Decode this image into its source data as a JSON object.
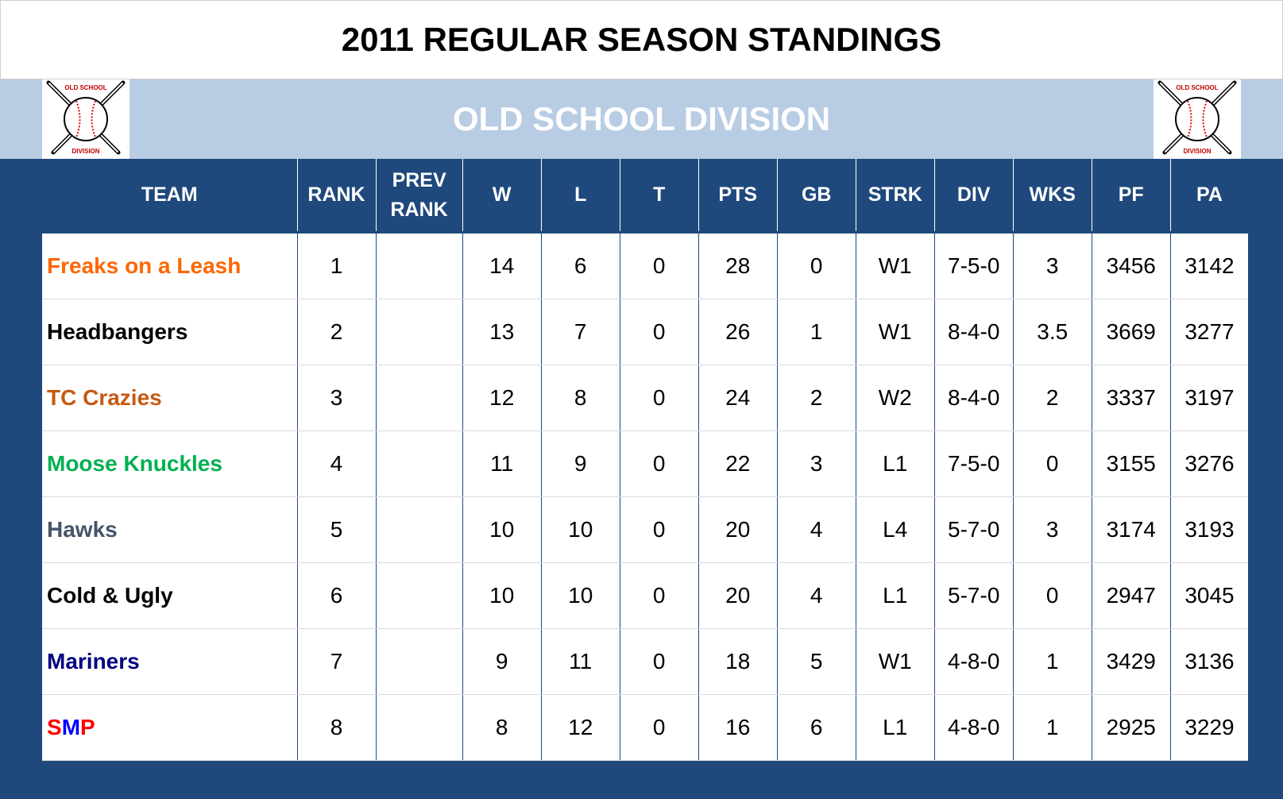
{
  "title": "2011 REGULAR SEASON STANDINGS",
  "division": "OLD SCHOOL DIVISION",
  "logo": {
    "icon": "baseball-crossed-bats-icon",
    "top_text": "OLD SCHOOL",
    "bottom_text": "DIVISION"
  },
  "columns": [
    "TEAM",
    "RANK",
    "PREV RANK",
    "W",
    "L",
    "T",
    "PTS",
    "GB",
    "STRK",
    "DIV",
    "WKS",
    "PF",
    "PA"
  ],
  "column_widths": null,
  "rows": [
    {
      "team": "Freaks on a Leash",
      "color": "#ff6600",
      "rank": "1",
      "prev_rank": "",
      "w": "14",
      "l": "6",
      "t": "0",
      "pts": "28",
      "gb": "0",
      "strk": "W1",
      "div": "7-5-0",
      "wks": "3",
      "pf": "3456",
      "pa": "3142"
    },
    {
      "team": "Headbangers",
      "color": "#000000",
      "rank": "2",
      "prev_rank": "",
      "w": "13",
      "l": "7",
      "t": "0",
      "pts": "26",
      "gb": "1",
      "strk": "W1",
      "div": "8-4-0",
      "wks": "3.5",
      "pf": "3669",
      "pa": "3277"
    },
    {
      "team": "TC Crazies",
      "color": "#c65911",
      "rank": "3",
      "prev_rank": "",
      "w": "12",
      "l": "8",
      "t": "0",
      "pts": "24",
      "gb": "2",
      "strk": "W2",
      "div": "8-4-0",
      "wks": "2",
      "pf": "3337",
      "pa": "3197"
    },
    {
      "team": "Moose Knuckles",
      "color": "#00b050",
      "rank": "4",
      "prev_rank": "",
      "w": "11",
      "l": "9",
      "t": "0",
      "pts": "22",
      "gb": "3",
      "strk": "L1",
      "div": "7-5-0",
      "wks": "0",
      "pf": "3155",
      "pa": "3276"
    },
    {
      "team": "Hawks",
      "color": "#44546a",
      "rank": "5",
      "prev_rank": "",
      "w": "10",
      "l": "10",
      "t": "0",
      "pts": "20",
      "gb": "4",
      "strk": "L4",
      "div": "5-7-0",
      "wks": "3",
      "pf": "3174",
      "pa": "3193"
    },
    {
      "team": "Cold & Ugly",
      "color": "#000000",
      "rank": "6",
      "prev_rank": "",
      "w": "10",
      "l": "10",
      "t": "0",
      "pts": "20",
      "gb": "4",
      "strk": "L1",
      "div": "5-7-0",
      "wks": "0",
      "pf": "2947",
      "pa": "3045"
    },
    {
      "team": "Mariners",
      "color": "#000080",
      "rank": "7",
      "prev_rank": "",
      "w": "9",
      "l": "11",
      "t": "0",
      "pts": "18",
      "gb": "5",
      "strk": "W1",
      "div": "4-8-0",
      "wks": "1",
      "pf": "3429",
      "pa": "3136"
    },
    {
      "team": "SMP",
      "color": "multi",
      "rank": "8",
      "prev_rank": "",
      "w": "8",
      "l": "12",
      "t": "0",
      "pts": "16",
      "gb": "6",
      "strk": "L1",
      "div": "4-8-0",
      "wks": "1",
      "pf": "2925",
      "pa": "3229"
    }
  ],
  "colors": {
    "header_bg": "#1f497d",
    "division_bg": "#b8cce4"
  }
}
